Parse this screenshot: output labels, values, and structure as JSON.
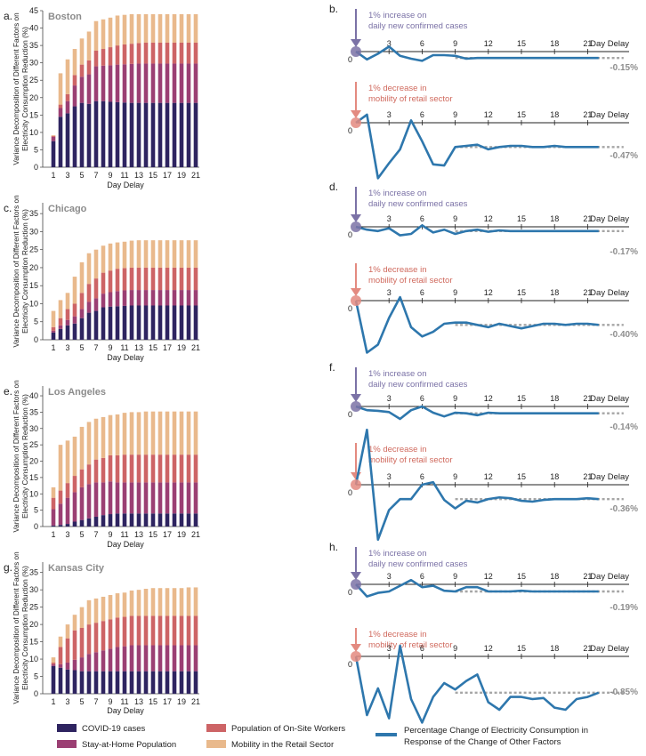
{
  "colors": {
    "covid": "#2e2460",
    "stay": "#9b3f73",
    "onsite": "#cd6466",
    "mobility": "#e9b98c",
    "response": "#2e77ad",
    "covid_arrow": "#7b72a6",
    "mobility_arrow": "#e38a80",
    "dashed": "#a6a6a6",
    "title": "#8c8c8c"
  },
  "common": {
    "ylabel_line1": "Variance Decomposition of Different Factors on",
    "ylabel_line2": "Electricity Consumption Reduction (%)",
    "xlabel": "Day Delay",
    "right_axis_label": "Day Delay",
    "covid_shock_line1": "1% increase on",
    "covid_shock_line2": "daily new confirmed cases",
    "mobility_shock_line1": "1% decrease in",
    "mobility_shock_line2": "mobility of retail sector"
  },
  "panel_letters": {
    "a": "a.",
    "b": "b.",
    "c": "c.",
    "d": "d.",
    "e": "e.",
    "f": "f.",
    "g": "g.",
    "h": "h."
  },
  "legend": {
    "covid": "COVID-19 cases",
    "stay": "Stay-at-Home Population",
    "onsite": "Population of On-Site Workers",
    "mobility": "Mobility in the Retail Sector",
    "response_line1": "Percentage Change of Electricity Consumption in",
    "response_line2": "Response of the Change of Other Factors"
  },
  "chart_data": [
    {
      "type": "bar",
      "stacked": true,
      "title": "Boston",
      "xlabel": "Day Delay",
      "ylabel": "Variance Decomposition of Different Factors on Electricity Consumption Reduction (%)",
      "ylim": [
        0,
        45
      ],
      "yticks": [
        0,
        5,
        10,
        15,
        20,
        25,
        30,
        35,
        40,
        45
      ],
      "categories": [
        1,
        2,
        3,
        4,
        5,
        6,
        7,
        8,
        9,
        10,
        11,
        12,
        13,
        14,
        15,
        16,
        17,
        18,
        19,
        20,
        21
      ],
      "series": [
        {
          "name": "COVID-19 cases",
          "values": [
            7.5,
            14.5,
            15.5,
            17.5,
            18.5,
            18.2,
            19,
            19,
            18.8,
            18.7,
            18.6,
            18.5,
            18.5,
            18.5,
            18.5,
            18.5,
            18.5,
            18.5,
            18.5,
            18.5,
            18.5
          ]
        },
        {
          "name": "Stay-at-Home Population",
          "values": [
            1.2,
            2.5,
            3.5,
            6,
            7.5,
            8.5,
            10,
            10.2,
            10.5,
            10.8,
            11,
            11.2,
            11.3,
            11.3,
            11.3,
            11.3,
            11.3,
            11.3,
            11.3,
            11.3,
            11.3
          ]
        },
        {
          "name": "Population of On-Site Workers",
          "values": [
            0.3,
            1,
            2,
            3,
            3.5,
            4,
            4.5,
            4.8,
            5.2,
            5.5,
            5.7,
            5.8,
            5.9,
            6,
            6,
            6,
            6,
            6,
            6,
            6,
            6
          ]
        },
        {
          "name": "Mobility in the Retail Sector",
          "values": [
            0.2,
            9,
            10,
            7.5,
            7.5,
            8.3,
            8.5,
            8.5,
            8.5,
            8.6,
            8.5,
            8.5,
            8.3,
            8.2,
            8.2,
            8.2,
            8.2,
            8.2,
            8.2,
            8.2,
            8.2
          ]
        }
      ]
    },
    {
      "type": "line",
      "panel": "b",
      "shock": "1% increase on daily new confirmed cases",
      "xlabel": "Day Delay",
      "xticks": [
        0,
        3,
        6,
        9,
        12,
        15,
        18,
        21
      ],
      "final_label": "-0.15%",
      "x": [
        0,
        1,
        2,
        3,
        4,
        5,
        6,
        7,
        8,
        9,
        10,
        11,
        12,
        13,
        14,
        15,
        16,
        17,
        18,
        19,
        20,
        21,
        22
      ],
      "values": [
        0,
        -0.55,
        -0.15,
        0.35,
        -0.3,
        -0.5,
        -0.65,
        -0.25,
        -0.25,
        -0.3,
        -0.5,
        -0.45,
        -0.45,
        -0.45,
        -0.45,
        -0.45,
        -0.45,
        -0.45,
        -0.45,
        -0.45,
        -0.45,
        -0.45,
        -0.45
      ],
      "ylim": [
        -1.2,
        1
      ]
    },
    {
      "type": "line",
      "panel": "b",
      "shock": "1% decrease in mobility of retail sector",
      "xlabel": "Day Delay",
      "xticks": [
        0,
        3,
        6,
        9,
        12,
        15,
        18,
        21
      ],
      "final_label": "-0.47%",
      "x": [
        0,
        1,
        2,
        3,
        4,
        5,
        6,
        7,
        8,
        9,
        10,
        11,
        12,
        13,
        14,
        15,
        16,
        17,
        18,
        19,
        20,
        21,
        22
      ],
      "values": [
        0,
        0.7,
        -4.8,
        -3.5,
        -2.3,
        0.2,
        -1.6,
        -3.6,
        -3.7,
        -2.1,
        -2.0,
        -1.9,
        -2.3,
        -2.1,
        -2.0,
        -2.0,
        -2.1,
        -2.1,
        -2.0,
        -2.1,
        -2.1,
        -2.1,
        -2.1
      ],
      "ylim": [
        -5,
        1.5
      ]
    },
    {
      "type": "bar",
      "stacked": true,
      "title": "Chicago",
      "xlabel": "Day Delay",
      "ylabel": "Variance Decomposition of Different Factors on Electricity Consumption Reduction (%)",
      "ylim": [
        0,
        38
      ],
      "yticks": [
        0,
        5,
        10,
        15,
        20,
        25,
        30,
        35
      ],
      "categories": [
        1,
        2,
        3,
        4,
        5,
        6,
        7,
        8,
        9,
        10,
        11,
        12,
        13,
        14,
        15,
        16,
        17,
        18,
        19,
        20,
        21
      ],
      "series": [
        {
          "name": "COVID-19 cases",
          "values": [
            2,
            3,
            4,
            4.5,
            6,
            7.5,
            8,
            9,
            9.2,
            9.3,
            9.4,
            9.5,
            9.5,
            9.5,
            9.5,
            9.5,
            9.5,
            9.5,
            9.5,
            9.5,
            9.5
          ]
        },
        {
          "name": "Stay-at-Home Population",
          "values": [
            0.5,
            1,
            1.5,
            2,
            2.5,
            3,
            3.5,
            3.8,
            4,
            4.2,
            4.3,
            4.3,
            4.3,
            4.3,
            4.3,
            4.3,
            4.3,
            4.3,
            4.3,
            4.3,
            4.3
          ]
        },
        {
          "name": "Population of On-Site Workers",
          "values": [
            1,
            2,
            3,
            3.5,
            4.5,
            5,
            5.5,
            5.8,
            6,
            6.2,
            6.2,
            6.2,
            6.2,
            6.2,
            6.2,
            6.2,
            6.2,
            6.2,
            6.2,
            6.2,
            6.2
          ]
        },
        {
          "name": "Mobility in the Retail Sector",
          "values": [
            4.5,
            5,
            4.5,
            7.5,
            8.5,
            8.5,
            8,
            7.5,
            7.5,
            7.3,
            7.3,
            7.5,
            7.6,
            7.6,
            7.6,
            7.6,
            7.6,
            7.6,
            7.6,
            7.6,
            7.6
          ]
        }
      ]
    },
    {
      "type": "line",
      "panel": "d",
      "shock": "1% increase on daily new confirmed cases",
      "xlabel": "Day Delay",
      "xticks": [
        0,
        3,
        6,
        9,
        12,
        15,
        18,
        21
      ],
      "final_label": "-0.17%",
      "x": [
        0,
        1,
        2,
        3,
        4,
        5,
        6,
        7,
        8,
        9,
        10,
        11,
        12,
        13,
        14,
        15,
        16,
        17,
        18,
        19,
        20,
        21,
        22
      ],
      "values": [
        0,
        -0.2,
        -0.3,
        -0.1,
        -0.6,
        -0.5,
        0.1,
        -0.4,
        -0.2,
        -0.5,
        -0.3,
        -0.2,
        -0.35,
        -0.25,
        -0.3,
        -0.3,
        -0.3,
        -0.3,
        -0.3,
        -0.3,
        -0.3,
        -0.3,
        -0.3
      ],
      "ylim": [
        -1.2,
        1
      ]
    },
    {
      "type": "line",
      "panel": "d",
      "shock": "1% decrease in mobility of retail sector",
      "xlabel": "Day Delay",
      "xticks": [
        0,
        3,
        6,
        9,
        12,
        15,
        18,
        21
      ],
      "final_label": "-0.40%",
      "x": [
        0,
        1,
        2,
        3,
        4,
        5,
        6,
        7,
        8,
        9,
        10,
        11,
        12,
        13,
        14,
        15,
        16,
        17,
        18,
        19,
        20,
        21,
        22
      ],
      "values": [
        0,
        -4.5,
        -3.8,
        -1.5,
        0.3,
        -2.3,
        -3.1,
        -2.7,
        -2.0,
        -1.9,
        -1.9,
        -2.1,
        -2.3,
        -2.0,
        -2.2,
        -2.4,
        -2.2,
        -2.0,
        -2.0,
        -2.1,
        -2.0,
        -2.0,
        -2.1
      ],
      "ylim": [
        -5,
        1.5
      ]
    },
    {
      "type": "bar",
      "stacked": true,
      "title": "Los Angeles",
      "xlabel": "Day Delay",
      "ylabel": "Variance Decomposition of Different Factors on Electricity Consumption Reduction (%)",
      "ylim": [
        0,
        43
      ],
      "yticks": [
        0,
        5,
        10,
        15,
        20,
        25,
        30,
        35,
        40
      ],
      "categories": [
        1,
        2,
        3,
        4,
        5,
        6,
        7,
        8,
        9,
        10,
        11,
        12,
        13,
        14,
        15,
        16,
        17,
        18,
        19,
        20,
        21
      ],
      "series": [
        {
          "name": "COVID-19 cases",
          "values": [
            0.3,
            0.5,
            0.8,
            1.5,
            2,
            2.5,
            3,
            3.5,
            3.8,
            4,
            4,
            4,
            4,
            4,
            4,
            4,
            4,
            4,
            4,
            4,
            4
          ]
        },
        {
          "name": "Stay-at-Home Population",
          "values": [
            5,
            6.5,
            8,
            9,
            10,
            10.5,
            10.5,
            10,
            10,
            9.5,
            9.5,
            9.5,
            9.5,
            9.5,
            9.5,
            9.5,
            9.5,
            9.5,
            9.5,
            9.5,
            9.5
          ]
        },
        {
          "name": "Population of On-Site Workers",
          "values": [
            3.5,
            4,
            4.5,
            5,
            5.5,
            6,
            7,
            7.5,
            8,
            8.3,
            8.5,
            8.5,
            8.5,
            8.5,
            8.5,
            8.5,
            8.5,
            8.5,
            8.5,
            8.5,
            8.5
          ]
        },
        {
          "name": "Mobility in the Retail Sector",
          "values": [
            3.2,
            14,
            13,
            12,
            13,
            13,
            12.5,
            12.5,
            12.3,
            12.5,
            12.8,
            13,
            13,
            13.2,
            13.2,
            13.2,
            13.2,
            13.2,
            13.2,
            13.2,
            13.2
          ]
        }
      ]
    },
    {
      "type": "line",
      "panel": "f",
      "shock": "1% increase on daily new confirmed cases",
      "xlabel": "Day Delay",
      "xticks": [
        0,
        3,
        6,
        9,
        12,
        15,
        18,
        21
      ],
      "final_label": "-0.14%",
      "x": [
        0,
        1,
        2,
        3,
        4,
        5,
        6,
        7,
        8,
        9,
        10,
        11,
        12,
        13,
        14,
        15,
        16,
        17,
        18,
        19,
        20,
        21,
        22
      ],
      "values": [
        0,
        -0.3,
        -0.35,
        -0.45,
        -1.0,
        -0.3,
        0,
        -0.5,
        -0.8,
        -0.5,
        -0.55,
        -0.7,
        -0.5,
        -0.55,
        -0.55,
        -0.55,
        -0.55,
        -0.55,
        -0.55,
        -0.55,
        -0.55,
        -0.55,
        -0.55
      ],
      "ylim": [
        -1.6,
        1
      ]
    },
    {
      "type": "line",
      "panel": "f",
      "shock": "1% decrease in mobility of retail sector",
      "xlabel": "Day Delay",
      "xticks": [
        0,
        3,
        6,
        9,
        12,
        15,
        18,
        21
      ],
      "final_label": "-0.36%",
      "x": [
        0,
        1,
        2,
        3,
        4,
        5,
        6,
        7,
        8,
        9,
        10,
        11,
        12,
        13,
        14,
        15,
        16,
        17,
        18,
        19,
        20,
        21,
        22
      ],
      "values": [
        0,
        6.5,
        -6.5,
        -3.0,
        -1.7,
        -1.7,
        0,
        0.3,
        -1.8,
        -2.8,
        -1.9,
        -2.1,
        -1.7,
        -1.5,
        -1.6,
        -1.9,
        -2.0,
        -1.8,
        -1.7,
        -1.7,
        -1.7,
        -1.6,
        -1.7
      ],
      "ylim": [
        -7,
        7
      ]
    },
    {
      "type": "bar",
      "stacked": true,
      "title": "Kansas City",
      "xlabel": "Day Delay",
      "ylabel": "Variance Decomposition of Different Factors on Electricity Consumption Reduction (%)",
      "ylim": [
        0,
        38
      ],
      "yticks": [
        0,
        5,
        10,
        15,
        20,
        25,
        30,
        35
      ],
      "categories": [
        1,
        2,
        3,
        4,
        5,
        6,
        7,
        8,
        9,
        10,
        11,
        12,
        13,
        14,
        15,
        16,
        17,
        18,
        19,
        20,
        21
      ],
      "series": [
        {
          "name": "COVID-19 cases",
          "values": [
            8,
            7.5,
            7,
            6.8,
            6.5,
            6.5,
            6.5,
            6.5,
            6.5,
            6.5,
            6.5,
            6.5,
            6.5,
            6.5,
            6.5,
            6.5,
            6.5,
            6.5,
            6.5,
            6.5,
            6.5
          ]
        },
        {
          "name": "Stay-at-Home Population",
          "values": [
            0.5,
            1,
            2,
            3,
            4,
            5,
            5.5,
            6,
            6.5,
            7,
            7.2,
            7.5,
            7.5,
            7.5,
            7.5,
            7.5,
            7.5,
            7.5,
            7.5,
            7.5,
            7.5
          ]
        },
        {
          "name": "Population of On-Site Workers",
          "values": [
            0.5,
            5,
            7,
            8.5,
            8.5,
            8.5,
            8.5,
            8.5,
            8.5,
            8.5,
            8.5,
            8.5,
            8.5,
            8.5,
            8.5,
            8.5,
            8.5,
            8.5,
            8.5,
            8.5,
            8.5
          ]
        },
        {
          "name": "Mobility in the Retail Sector",
          "values": [
            1.5,
            3,
            4,
            4.5,
            6,
            7,
            7,
            7,
            7,
            7,
            7,
            7.3,
            7.5,
            7.8,
            8,
            8,
            8,
            8,
            8,
            8.2,
            8.2
          ]
        }
      ]
    },
    {
      "type": "line",
      "panel": "h",
      "shock": "1% increase on daily new confirmed cases",
      "xlabel": "Day Delay",
      "xticks": [
        0,
        3,
        6,
        9,
        12,
        15,
        18,
        21
      ],
      "final_label": "-0.19%",
      "x": [
        0,
        1,
        2,
        3,
        4,
        5,
        6,
        7,
        8,
        9,
        10,
        11,
        12,
        13,
        14,
        15,
        16,
        17,
        18,
        19,
        20,
        21,
        22
      ],
      "values": [
        0,
        -0.85,
        -0.6,
        -0.5,
        -0.1,
        0.3,
        -0.2,
        -0.1,
        -0.45,
        -0.5,
        -0.2,
        -0.2,
        -0.5,
        -0.5,
        -0.5,
        -0.45,
        -0.5,
        -0.5,
        -0.5,
        -0.5,
        -0.5,
        -0.5,
        -0.5
      ],
      "ylim": [
        -1.2,
        1
      ]
    },
    {
      "type": "line",
      "panel": "h",
      "shock": "1% decrease in mobility of retail sector",
      "xlabel": "Day Delay",
      "xticks": [
        0,
        3,
        6,
        9,
        12,
        15,
        18,
        21
      ],
      "final_label": "-0.85%",
      "x": [
        0,
        1,
        2,
        3,
        4,
        5,
        6,
        7,
        8,
        9,
        10,
        11,
        12,
        13,
        14,
        15,
        16,
        17,
        18,
        19,
        20,
        21,
        22
      ],
      "values": [
        0,
        -5.5,
        -3.0,
        -5.8,
        1.0,
        -4.0,
        -6.2,
        -3.8,
        -2.5,
        -3.1,
        -2.3,
        -1.7,
        -4.3,
        -5.0,
        -3.8,
        -3.8,
        -4.0,
        -3.9,
        -4.8,
        -5.0,
        -4.0,
        -3.8,
        -3.4
      ],
      "ylim": [
        -6.5,
        1.5
      ]
    }
  ]
}
